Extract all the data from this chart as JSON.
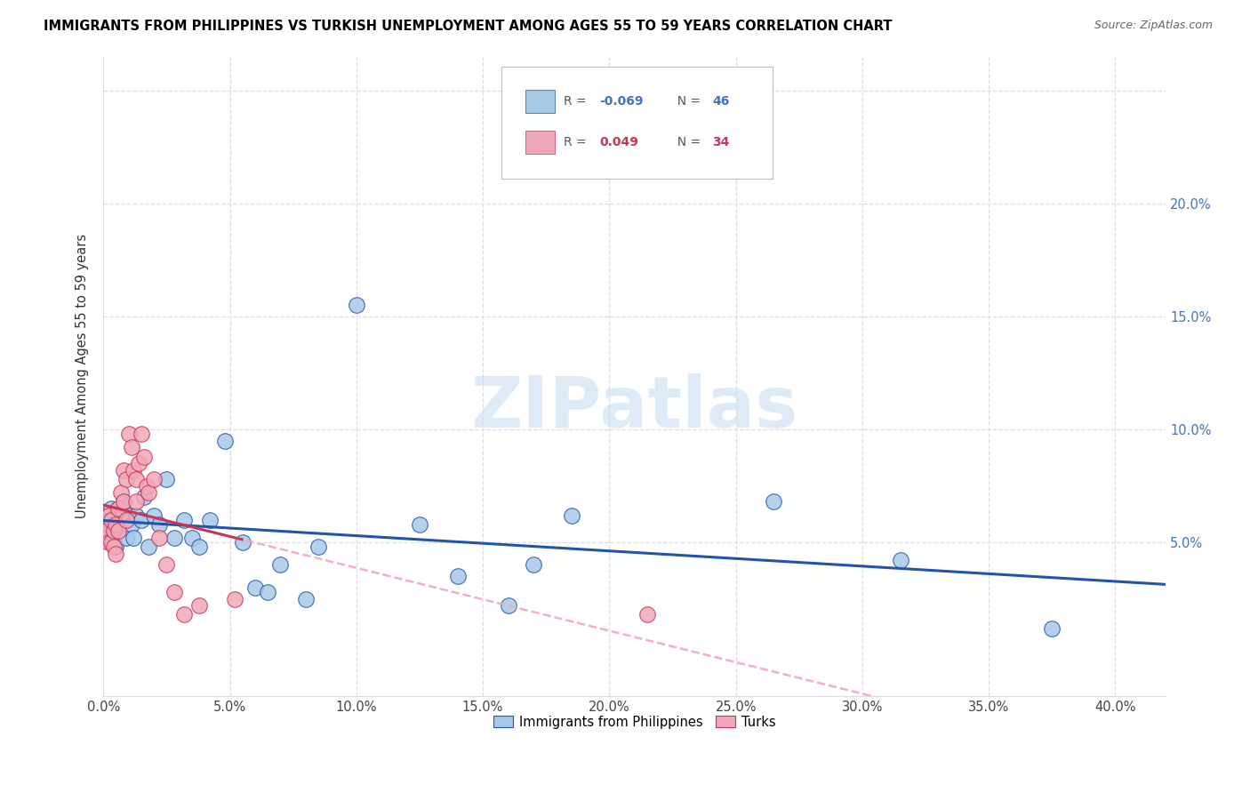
{
  "title": "IMMIGRANTS FROM PHILIPPINES VS TURKISH UNEMPLOYMENT AMONG AGES 55 TO 59 YEARS CORRELATION CHART",
  "source": "Source: ZipAtlas.com",
  "ylabel": "Unemployment Among Ages 55 to 59 years",
  "xlim": [
    0.0,
    0.42
  ],
  "ylim": [
    -0.018,
    0.265
  ],
  "blue_R": "-0.069",
  "blue_N": "46",
  "pink_R": "0.049",
  "pink_N": "34",
  "blue_color": "#a8c8e8",
  "pink_color": "#f0a8b8",
  "blue_line_color": "#2255aa",
  "pink_line_color": "#cc3355",
  "pink_dashed_color": "#f0a8b8",
  "watermark": "ZIPatlas",
  "legend1_label": "Immigrants from Philippines",
  "legend2_label": "Turks",
  "blue_x": [
    0.001,
    0.002,
    0.002,
    0.003,
    0.003,
    0.004,
    0.004,
    0.005,
    0.005,
    0.006,
    0.006,
    0.007,
    0.007,
    0.008,
    0.009,
    0.01,
    0.011,
    0.012,
    0.013,
    0.015,
    0.016,
    0.018,
    0.02,
    0.022,
    0.025,
    0.028,
    0.032,
    0.035,
    0.038,
    0.042,
    0.048,
    0.055,
    0.06,
    0.065,
    0.07,
    0.08,
    0.085,
    0.1,
    0.125,
    0.14,
    0.16,
    0.17,
    0.185,
    0.265,
    0.315,
    0.375
  ],
  "blue_y": [
    0.058,
    0.052,
    0.06,
    0.055,
    0.065,
    0.055,
    0.05,
    0.062,
    0.048,
    0.06,
    0.065,
    0.058,
    0.062,
    0.068,
    0.052,
    0.062,
    0.058,
    0.052,
    0.062,
    0.06,
    0.07,
    0.048,
    0.062,
    0.058,
    0.078,
    0.052,
    0.06,
    0.052,
    0.048,
    0.06,
    0.095,
    0.05,
    0.03,
    0.028,
    0.04,
    0.025,
    0.048,
    0.155,
    0.058,
    0.035,
    0.022,
    0.04,
    0.062,
    0.068,
    0.042,
    0.012
  ],
  "pink_x": [
    0.001,
    0.002,
    0.002,
    0.003,
    0.003,
    0.004,
    0.004,
    0.005,
    0.005,
    0.006,
    0.006,
    0.007,
    0.008,
    0.008,
    0.009,
    0.009,
    0.01,
    0.011,
    0.012,
    0.013,
    0.013,
    0.014,
    0.015,
    0.016,
    0.017,
    0.018,
    0.02,
    0.022,
    0.025,
    0.028,
    0.032,
    0.038,
    0.052,
    0.215
  ],
  "pink_y": [
    0.055,
    0.05,
    0.062,
    0.05,
    0.06,
    0.055,
    0.048,
    0.058,
    0.045,
    0.065,
    0.055,
    0.072,
    0.082,
    0.068,
    0.078,
    0.06,
    0.098,
    0.092,
    0.082,
    0.078,
    0.068,
    0.085,
    0.098,
    0.088,
    0.075,
    0.072,
    0.078,
    0.052,
    0.04,
    0.028,
    0.018,
    0.022,
    0.025,
    0.018
  ]
}
